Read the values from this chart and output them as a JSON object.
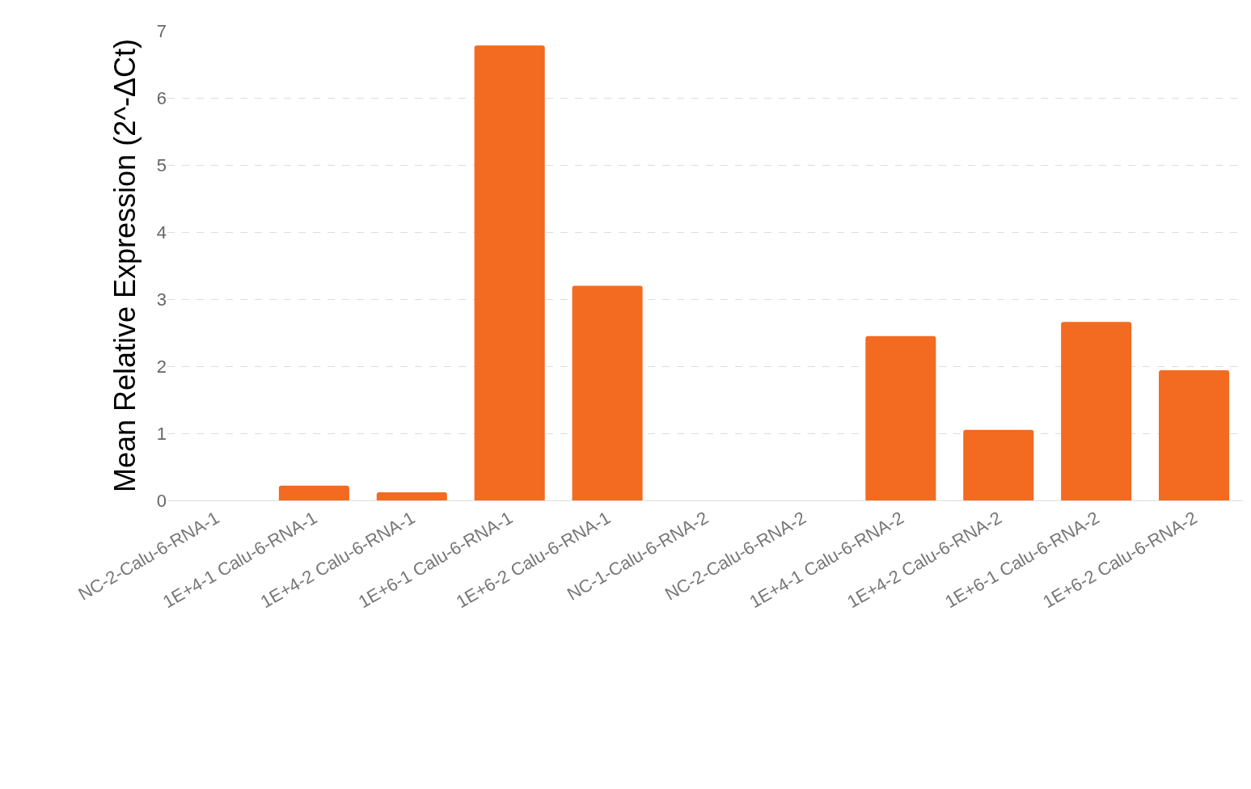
{
  "chart_data": {
    "type": "bar",
    "ylabel": "Mean Relative Expression (2^-ΔCt)",
    "categories": [
      "NC-2-Calu-6-RNA-1",
      "1E+4-1 Calu-6-RNA-1",
      "1E+4-2 Calu-6-RNA-1",
      "1E+6-1 Calu-6-RNA-1",
      "1E+6-2 Calu-6-RNA-1",
      "NC-1-Calu-6-RNA-2",
      "NC-2-Calu-6-RNA-2",
      "1E+4-1 Calu-6-RNA-2",
      "1E+4-2 Calu-6-RNA-2",
      "1E+6-1 Calu-6-RNA-2",
      "1E+6-2 Calu-6-RNA-2"
    ],
    "values": [
      0,
      0.22,
      0.12,
      6.78,
      3.2,
      0,
      0,
      2.45,
      1.05,
      2.66,
      1.94
    ],
    "color": "#f26b21",
    "ylim": [
      0,
      7
    ],
    "yticks": [
      0,
      1,
      2,
      3,
      4,
      5,
      6,
      7
    ],
    "grid": "y"
  }
}
